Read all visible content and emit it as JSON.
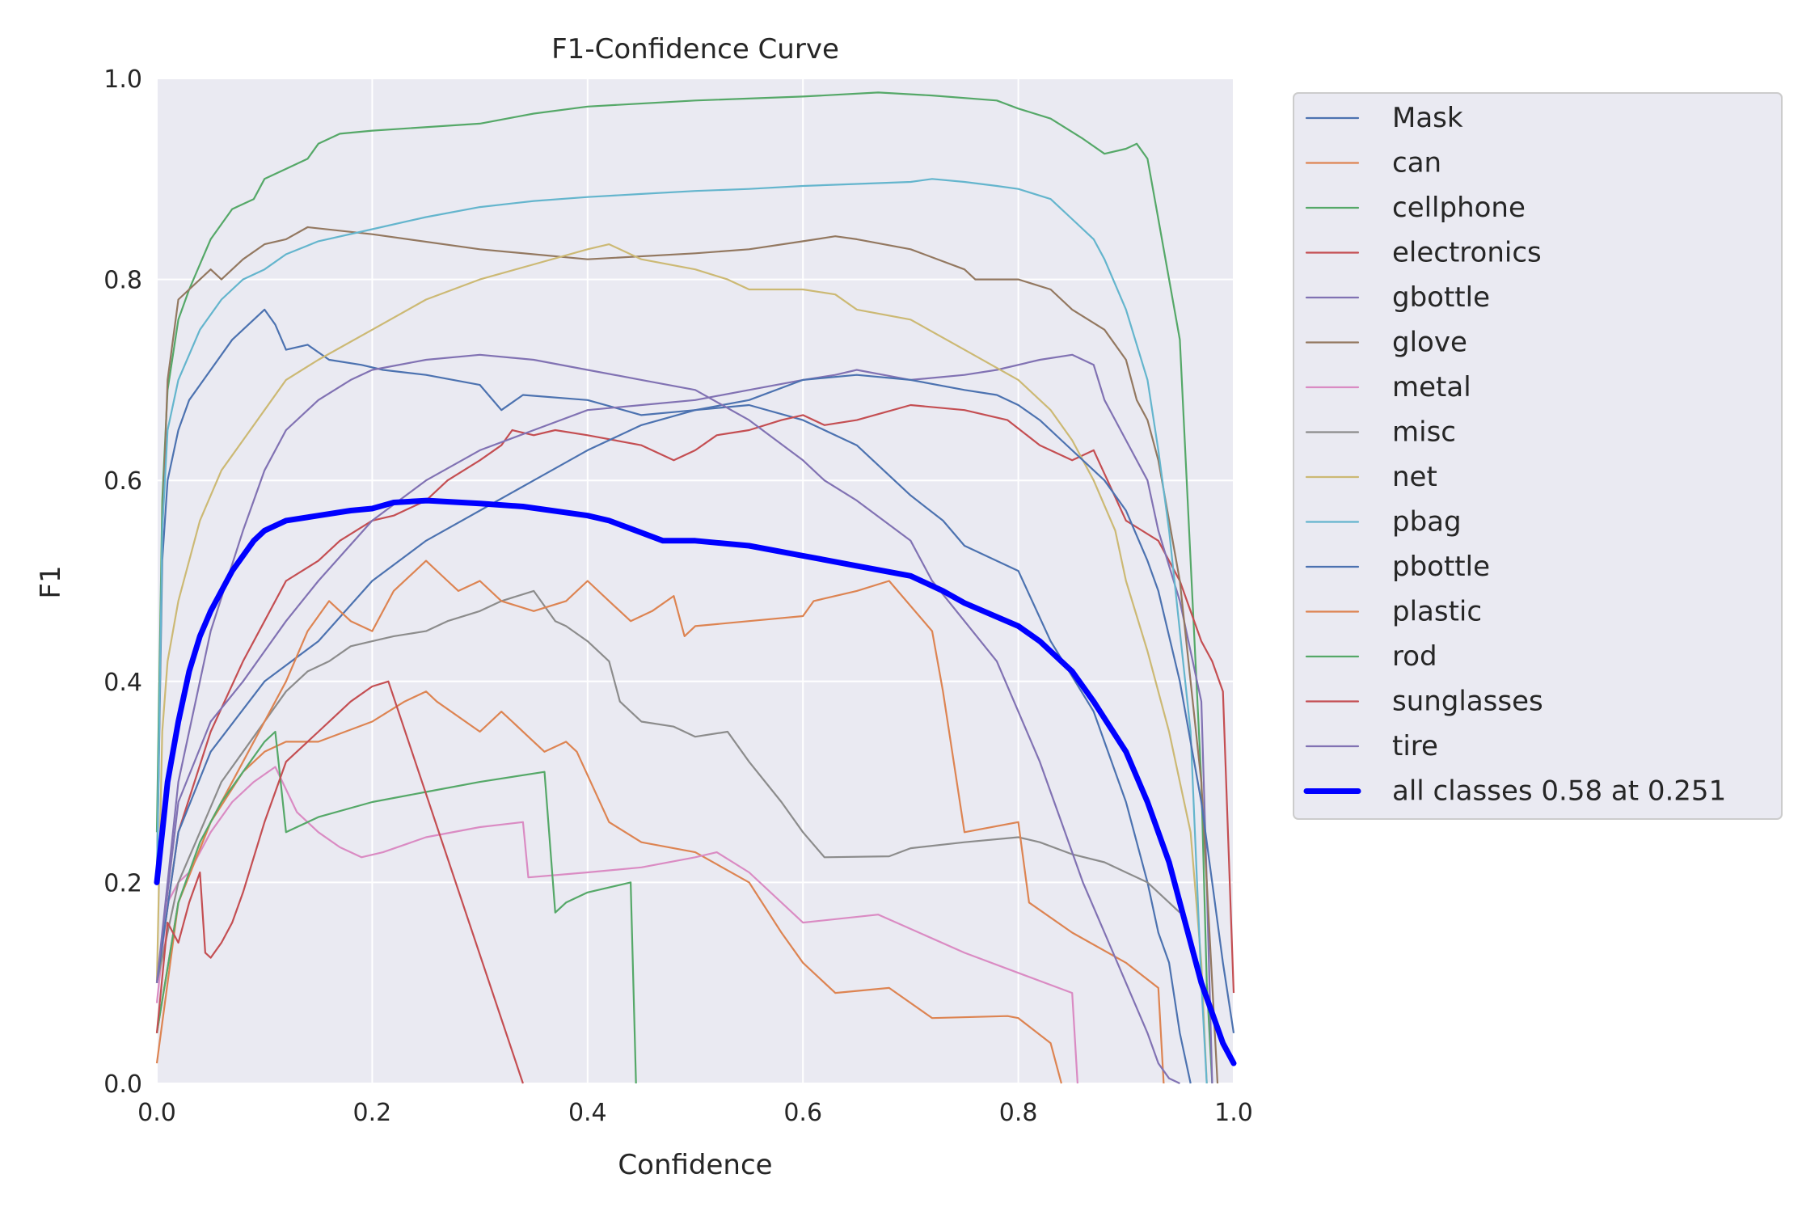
{
  "chart_data": {
    "type": "line",
    "title": "F1-Confidence Curve",
    "xlabel": "Confidence",
    "ylabel": "F1",
    "xlim": [
      0.0,
      1.0
    ],
    "ylim": [
      0.0,
      1.0
    ],
    "xticks": [
      "0.0",
      "0.2",
      "0.4",
      "0.6",
      "0.8",
      "1.0"
    ],
    "yticks": [
      "0.0",
      "0.2",
      "0.4",
      "0.6",
      "0.8",
      "1.0"
    ],
    "grid": true,
    "legend_position": "outside-right-top",
    "series": [
      {
        "name": "Mask",
        "color": "#4c72b0",
        "x": [
          0,
          0.005,
          0.01,
          0.02,
          0.03,
          0.05,
          0.07,
          0.09,
          0.1,
          0.11,
          0.12,
          0.14,
          0.16,
          0.19,
          0.21,
          0.25,
          0.3,
          0.32,
          0.34,
          0.4,
          0.45,
          0.5,
          0.55,
          0.6,
          0.65,
          0.7,
          0.73,
          0.75,
          0.8,
          0.83,
          0.87,
          0.9,
          0.92,
          0.93,
          0.94,
          0.95,
          0.96
        ],
        "y": [
          0.2,
          0.52,
          0.6,
          0.65,
          0.68,
          0.71,
          0.74,
          0.76,
          0.77,
          0.755,
          0.73,
          0.735,
          0.72,
          0.715,
          0.71,
          0.705,
          0.695,
          0.67,
          0.685,
          0.68,
          0.665,
          0.67,
          0.675,
          0.66,
          0.635,
          0.585,
          0.56,
          0.535,
          0.51,
          0.44,
          0.37,
          0.28,
          0.2,
          0.15,
          0.12,
          0.05,
          0.0
        ]
      },
      {
        "name": "can",
        "color": "#dd8452",
        "x": [
          0,
          0.02,
          0.05,
          0.08,
          0.1,
          0.12,
          0.15,
          0.2,
          0.23,
          0.25,
          0.26,
          0.3,
          0.32,
          0.33,
          0.35,
          0.36,
          0.38,
          0.39,
          0.42,
          0.45,
          0.5,
          0.55,
          0.58,
          0.6,
          0.63,
          0.68,
          0.72,
          0.79,
          0.8,
          0.83,
          0.84
        ],
        "y": [
          0.05,
          0.18,
          0.26,
          0.31,
          0.33,
          0.34,
          0.34,
          0.36,
          0.38,
          0.39,
          0.38,
          0.35,
          0.37,
          0.36,
          0.34,
          0.33,
          0.34,
          0.33,
          0.26,
          0.24,
          0.23,
          0.2,
          0.15,
          0.12,
          0.09,
          0.095,
          0.065,
          0.067,
          0.065,
          0.04,
          0.0
        ]
      },
      {
        "name": "cellphone",
        "color": "#55a868",
        "x": [
          0,
          0.005,
          0.01,
          0.02,
          0.03,
          0.05,
          0.07,
          0.09,
          0.1,
          0.12,
          0.14,
          0.15,
          0.17,
          0.2,
          0.3,
          0.35,
          0.4,
          0.5,
          0.6,
          0.67,
          0.72,
          0.78,
          0.8,
          0.83,
          0.86,
          0.88,
          0.9,
          0.91,
          0.92,
          0.93,
          0.95,
          0.96,
          0.97,
          0.975,
          0.98
        ],
        "y": [
          0.25,
          0.58,
          0.69,
          0.76,
          0.79,
          0.84,
          0.87,
          0.88,
          0.9,
          0.91,
          0.92,
          0.935,
          0.945,
          0.948,
          0.955,
          0.965,
          0.972,
          0.978,
          0.982,
          0.986,
          0.983,
          0.978,
          0.97,
          0.96,
          0.94,
          0.925,
          0.93,
          0.935,
          0.92,
          0.86,
          0.74,
          0.52,
          0.3,
          0.1,
          0.0
        ]
      },
      {
        "name": "electronics",
        "color": "#c44e52",
        "x": [
          0,
          0.02,
          0.05,
          0.08,
          0.1,
          0.12,
          0.15,
          0.17,
          0.2,
          0.22,
          0.25,
          0.27,
          0.3,
          0.32,
          0.33,
          0.35,
          0.37,
          0.4,
          0.45,
          0.48,
          0.5,
          0.52,
          0.55,
          0.58,
          0.6,
          0.62,
          0.65,
          0.7,
          0.75,
          0.79,
          0.82,
          0.85,
          0.87,
          0.9,
          0.93,
          0.95,
          0.97,
          0.98,
          0.99,
          1.0
        ],
        "y": [
          0.1,
          0.25,
          0.35,
          0.42,
          0.46,
          0.5,
          0.52,
          0.54,
          0.56,
          0.565,
          0.58,
          0.6,
          0.62,
          0.635,
          0.65,
          0.645,
          0.65,
          0.645,
          0.635,
          0.62,
          0.63,
          0.645,
          0.65,
          0.66,
          0.665,
          0.655,
          0.66,
          0.675,
          0.67,
          0.66,
          0.635,
          0.62,
          0.63,
          0.56,
          0.54,
          0.5,
          0.44,
          0.42,
          0.39,
          0.09
        ]
      },
      {
        "name": "gbottle",
        "color": "#8172b3",
        "x": [
          0,
          0.02,
          0.05,
          0.08,
          0.1,
          0.12,
          0.15,
          0.2,
          0.25,
          0.3,
          0.35,
          0.4,
          0.45,
          0.5,
          0.55,
          0.6,
          0.63,
          0.65,
          0.7,
          0.75,
          0.78,
          0.82,
          0.85,
          0.87,
          0.88,
          0.89,
          0.9,
          0.92,
          0.93,
          0.95,
          0.97,
          0.975,
          0.98
        ],
        "y": [
          0.1,
          0.28,
          0.36,
          0.4,
          0.43,
          0.46,
          0.5,
          0.56,
          0.6,
          0.63,
          0.65,
          0.67,
          0.675,
          0.68,
          0.69,
          0.7,
          0.705,
          0.71,
          0.7,
          0.705,
          0.71,
          0.72,
          0.725,
          0.715,
          0.68,
          0.66,
          0.64,
          0.6,
          0.55,
          0.48,
          0.38,
          0.2,
          0.0
        ]
      },
      {
        "name": "glove",
        "color": "#937860",
        "x": [
          0,
          0.005,
          0.01,
          0.02,
          0.03,
          0.05,
          0.06,
          0.08,
          0.1,
          0.12,
          0.14,
          0.2,
          0.3,
          0.4,
          0.5,
          0.55,
          0.6,
          0.63,
          0.65,
          0.7,
          0.75,
          0.76,
          0.8,
          0.83,
          0.85,
          0.88,
          0.9,
          0.91,
          0.92,
          0.93,
          0.95,
          0.97,
          0.98,
          0.985
        ],
        "y": [
          0.2,
          0.55,
          0.7,
          0.78,
          0.79,
          0.81,
          0.8,
          0.82,
          0.835,
          0.84,
          0.852,
          0.845,
          0.83,
          0.82,
          0.826,
          0.83,
          0.838,
          0.843,
          0.84,
          0.83,
          0.81,
          0.8,
          0.8,
          0.79,
          0.77,
          0.75,
          0.72,
          0.68,
          0.66,
          0.62,
          0.5,
          0.3,
          0.1,
          0.0
        ]
      },
      {
        "name": "metal",
        "color": "#da8bc3",
        "x": [
          0,
          0.01,
          0.02,
          0.03,
          0.05,
          0.07,
          0.09,
          0.11,
          0.13,
          0.15,
          0.17,
          0.19,
          0.21,
          0.25,
          0.3,
          0.34,
          0.345,
          0.4,
          0.45,
          0.5,
          0.52,
          0.55,
          0.6,
          0.67,
          0.75,
          0.8,
          0.85,
          0.855
        ],
        "y": [
          0.08,
          0.18,
          0.2,
          0.21,
          0.25,
          0.28,
          0.3,
          0.315,
          0.27,
          0.25,
          0.235,
          0.225,
          0.23,
          0.245,
          0.255,
          0.26,
          0.205,
          0.21,
          0.215,
          0.225,
          0.23,
          0.21,
          0.16,
          0.168,
          0.13,
          0.11,
          0.09,
          0.0
        ]
      },
      {
        "name": "misc",
        "color": "#8c8c8c",
        "x": [
          0,
          0.02,
          0.04,
          0.06,
          0.08,
          0.1,
          0.12,
          0.14,
          0.16,
          0.18,
          0.2,
          0.22,
          0.25,
          0.27,
          0.3,
          0.32,
          0.35,
          0.37,
          0.38,
          0.4,
          0.42,
          0.43,
          0.45,
          0.48,
          0.5,
          0.53,
          0.55,
          0.58,
          0.6,
          0.62,
          0.68,
          0.7,
          0.75,
          0.8,
          0.82,
          0.85,
          0.88,
          0.9,
          0.92,
          0.95
        ],
        "y": [
          0.1,
          0.2,
          0.25,
          0.3,
          0.33,
          0.36,
          0.39,
          0.41,
          0.42,
          0.435,
          0.44,
          0.445,
          0.45,
          0.46,
          0.47,
          0.48,
          0.49,
          0.46,
          0.455,
          0.44,
          0.42,
          0.38,
          0.36,
          0.355,
          0.345,
          0.35,
          0.32,
          0.28,
          0.25,
          0.225,
          0.226,
          0.234,
          0.24,
          0.245,
          0.24,
          0.228,
          0.22,
          0.21,
          0.2,
          0.17
        ]
      },
      {
        "name": "net",
        "color": "#ccb974",
        "x": [
          0,
          0.005,
          0.01,
          0.02,
          0.04,
          0.06,
          0.08,
          0.1,
          0.12,
          0.15,
          0.2,
          0.25,
          0.3,
          0.35,
          0.4,
          0.42,
          0.45,
          0.5,
          0.53,
          0.55,
          0.6,
          0.63,
          0.65,
          0.7,
          0.75,
          0.8,
          0.83,
          0.85,
          0.87,
          0.89,
          0.9,
          0.92,
          0.94,
          0.95,
          0.96,
          0.97,
          0.975
        ],
        "y": [
          0.1,
          0.35,
          0.42,
          0.48,
          0.56,
          0.61,
          0.64,
          0.67,
          0.7,
          0.72,
          0.75,
          0.78,
          0.8,
          0.815,
          0.83,
          0.835,
          0.82,
          0.81,
          0.8,
          0.79,
          0.79,
          0.785,
          0.77,
          0.76,
          0.73,
          0.7,
          0.67,
          0.64,
          0.6,
          0.55,
          0.5,
          0.43,
          0.35,
          0.3,
          0.25,
          0.12,
          0.0
        ]
      },
      {
        "name": "pbag",
        "color": "#64b5cd",
        "x": [
          0,
          0.005,
          0.01,
          0.02,
          0.04,
          0.06,
          0.08,
          0.1,
          0.12,
          0.15,
          0.2,
          0.25,
          0.3,
          0.35,
          0.4,
          0.45,
          0.5,
          0.55,
          0.6,
          0.65,
          0.7,
          0.72,
          0.75,
          0.78,
          0.8,
          0.83,
          0.85,
          0.87,
          0.88,
          0.9,
          0.92,
          0.93,
          0.94,
          0.95,
          0.96,
          0.97,
          0.975
        ],
        "y": [
          0.2,
          0.55,
          0.65,
          0.7,
          0.75,
          0.78,
          0.8,
          0.81,
          0.825,
          0.838,
          0.85,
          0.862,
          0.872,
          0.878,
          0.882,
          0.885,
          0.888,
          0.89,
          0.893,
          0.895,
          0.897,
          0.9,
          0.897,
          0.893,
          0.89,
          0.88,
          0.86,
          0.84,
          0.82,
          0.77,
          0.7,
          0.63,
          0.55,
          0.45,
          0.35,
          0.1,
          0.0
        ]
      },
      {
        "name": "pbottle",
        "color": "#4c72b0",
        "x": [
          0,
          0.02,
          0.05,
          0.1,
          0.15,
          0.2,
          0.25,
          0.3,
          0.35,
          0.4,
          0.45,
          0.5,
          0.55,
          0.6,
          0.65,
          0.7,
          0.75,
          0.78,
          0.8,
          0.82,
          0.84,
          0.86,
          0.88,
          0.9,
          0.92,
          0.93,
          0.95,
          0.97,
          0.98,
          0.99,
          1.0
        ],
        "y": [
          0.1,
          0.25,
          0.33,
          0.4,
          0.44,
          0.5,
          0.54,
          0.57,
          0.6,
          0.63,
          0.655,
          0.67,
          0.68,
          0.7,
          0.705,
          0.7,
          0.69,
          0.685,
          0.675,
          0.66,
          0.64,
          0.62,
          0.6,
          0.57,
          0.52,
          0.49,
          0.4,
          0.28,
          0.2,
          0.12,
          0.05
        ]
      },
      {
        "name": "plastic",
        "color": "#dd8452",
        "x": [
          0,
          0.02,
          0.05,
          0.08,
          0.1,
          0.12,
          0.14,
          0.16,
          0.18,
          0.2,
          0.22,
          0.25,
          0.27,
          0.28,
          0.3,
          0.32,
          0.35,
          0.38,
          0.4,
          0.42,
          0.44,
          0.46,
          0.48,
          0.49,
          0.5,
          0.55,
          0.6,
          0.61,
          0.65,
          0.68,
          0.72,
          0.73,
          0.74,
          0.75,
          0.8,
          0.81,
          0.85,
          0.9,
          0.93,
          0.935
        ],
        "y": [
          0.02,
          0.18,
          0.26,
          0.32,
          0.36,
          0.4,
          0.45,
          0.48,
          0.46,
          0.45,
          0.49,
          0.52,
          0.5,
          0.49,
          0.5,
          0.48,
          0.47,
          0.48,
          0.5,
          0.48,
          0.46,
          0.47,
          0.485,
          0.445,
          0.455,
          0.46,
          0.465,
          0.48,
          0.49,
          0.5,
          0.45,
          0.39,
          0.32,
          0.25,
          0.26,
          0.18,
          0.15,
          0.12,
          0.095,
          0.0
        ]
      },
      {
        "name": "rod",
        "color": "#55a868",
        "x": [
          0,
          0.02,
          0.04,
          0.06,
          0.08,
          0.1,
          0.11,
          0.12,
          0.13,
          0.15,
          0.2,
          0.25,
          0.3,
          0.36,
          0.37,
          0.38,
          0.4,
          0.44,
          0.445
        ],
        "y": [
          0.05,
          0.18,
          0.24,
          0.28,
          0.31,
          0.34,
          0.35,
          0.25,
          0.255,
          0.265,
          0.28,
          0.29,
          0.3,
          0.31,
          0.17,
          0.18,
          0.19,
          0.2,
          0.0
        ]
      },
      {
        "name": "sunglasses",
        "color": "#c44e52",
        "x": [
          0,
          0.01,
          0.02,
          0.03,
          0.04,
          0.045,
          0.05,
          0.06,
          0.07,
          0.08,
          0.1,
          0.12,
          0.15,
          0.18,
          0.2,
          0.215,
          0.34
        ],
        "y": [
          0.05,
          0.16,
          0.14,
          0.18,
          0.21,
          0.13,
          0.125,
          0.14,
          0.16,
          0.19,
          0.26,
          0.32,
          0.35,
          0.38,
          0.395,
          0.4,
          0.0
        ]
      },
      {
        "name": "tire",
        "color": "#8172b3",
        "x": [
          0,
          0.02,
          0.05,
          0.08,
          0.1,
          0.12,
          0.15,
          0.18,
          0.2,
          0.25,
          0.3,
          0.35,
          0.4,
          0.45,
          0.5,
          0.55,
          0.6,
          0.62,
          0.65,
          0.7,
          0.72,
          0.75,
          0.78,
          0.8,
          0.82,
          0.84,
          0.86,
          0.88,
          0.9,
          0.92,
          0.93,
          0.94,
          0.95
        ],
        "y": [
          0.1,
          0.3,
          0.45,
          0.55,
          0.61,
          0.65,
          0.68,
          0.7,
          0.71,
          0.72,
          0.725,
          0.72,
          0.71,
          0.7,
          0.69,
          0.66,
          0.62,
          0.6,
          0.58,
          0.54,
          0.5,
          0.46,
          0.42,
          0.37,
          0.32,
          0.26,
          0.2,
          0.15,
          0.1,
          0.05,
          0.02,
          0.005,
          0.0
        ]
      }
    ],
    "summary_series": {
      "name": "all classes 0.58 at 0.251",
      "color": "#0000ff",
      "x": [
        0,
        0.005,
        0.01,
        0.02,
        0.03,
        0.04,
        0.05,
        0.07,
        0.09,
        0.1,
        0.12,
        0.15,
        0.18,
        0.2,
        0.22,
        0.251,
        0.3,
        0.34,
        0.4,
        0.42,
        0.45,
        0.47,
        0.5,
        0.52,
        0.55,
        0.6,
        0.65,
        0.7,
        0.73,
        0.75,
        0.8,
        0.82,
        0.85,
        0.87,
        0.9,
        0.92,
        0.94,
        0.95,
        0.96,
        0.97,
        0.98,
        0.99,
        1.0
      ],
      "y": [
        0.2,
        0.25,
        0.3,
        0.36,
        0.41,
        0.445,
        0.47,
        0.51,
        0.54,
        0.55,
        0.56,
        0.565,
        0.57,
        0.572,
        0.578,
        0.58,
        0.577,
        0.574,
        0.565,
        0.56,
        0.548,
        0.54,
        0.54,
        0.538,
        0.535,
        0.525,
        0.515,
        0.505,
        0.49,
        0.478,
        0.455,
        0.44,
        0.41,
        0.38,
        0.33,
        0.28,
        0.22,
        0.18,
        0.14,
        0.1,
        0.07,
        0.04,
        0.02
      ]
    }
  }
}
